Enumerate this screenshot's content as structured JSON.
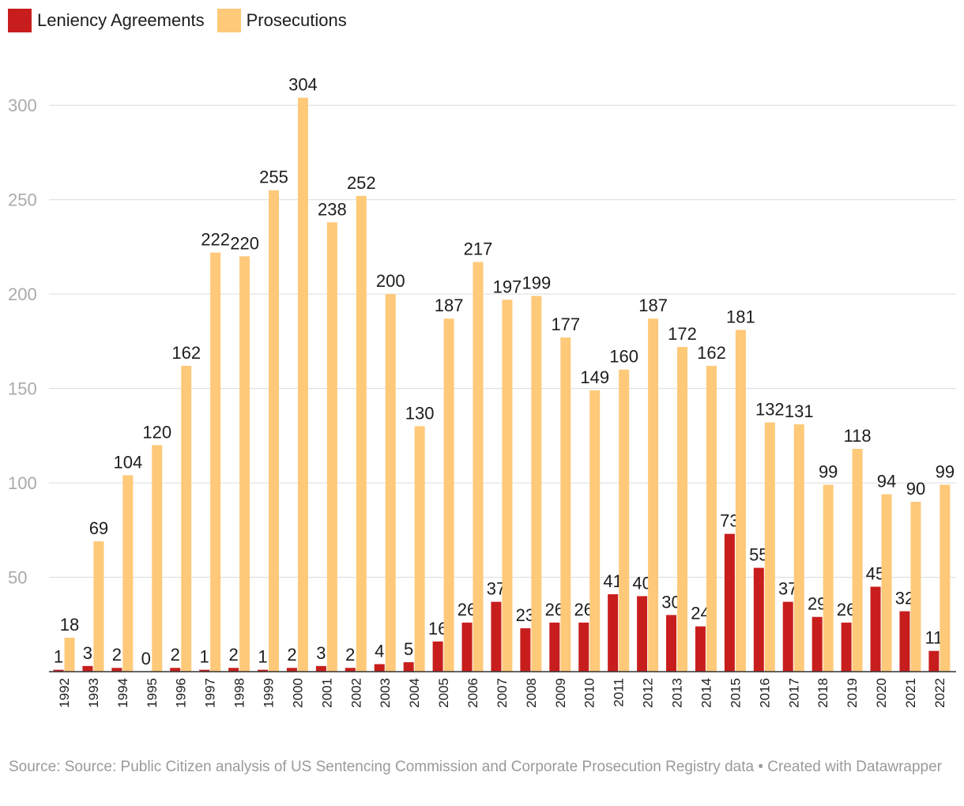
{
  "legend": {
    "items": [
      {
        "label": "Leniency Agreements",
        "color": "#c71e1d"
      },
      {
        "label": "Prosecutions",
        "color": "#fec979"
      }
    ]
  },
  "footer": {
    "text": "Source: Source: Public Citizen analysis of US Sentencing Commission and Corporate Prosecution Registry data • Created with Datawrapper"
  },
  "chart_data": {
    "type": "bar",
    "title": "",
    "xlabel": "",
    "ylabel": "",
    "ylim": [
      0,
      316
    ],
    "yticks": [
      50,
      100,
      150,
      200,
      250,
      300
    ],
    "grid": true,
    "legend_position": "top-left",
    "categories": [
      "1992",
      "1993",
      "1994",
      "1995",
      "1996",
      "1997",
      "1998",
      "1999",
      "2000",
      "2001",
      "2002",
      "2003",
      "2004",
      "2005",
      "2006",
      "2007",
      "2008",
      "2009",
      "2010",
      "2011",
      "2012",
      "2013",
      "2014",
      "2015",
      "2016",
      "2017",
      "2018",
      "2019",
      "2020",
      "2021",
      "2022"
    ],
    "series": [
      {
        "name": "Leniency Agreements",
        "color": "#c71e1d",
        "values": [
          1,
          3,
          2,
          0,
          2,
          1,
          2,
          1,
          2,
          3,
          2,
          4,
          5,
          16,
          26,
          37,
          23,
          26,
          26,
          41,
          40,
          30,
          24,
          73,
          55,
          37,
          29,
          26,
          45,
          32,
          11
        ]
      },
      {
        "name": "Prosecutions",
        "color": "#fec979",
        "values": [
          18,
          69,
          104,
          120,
          162,
          222,
          220,
          255,
          304,
          238,
          252,
          200,
          130,
          187,
          217,
          197,
          199,
          177,
          149,
          160,
          187,
          172,
          162,
          181,
          132,
          131,
          99,
          118,
          94,
          90,
          99
        ]
      }
    ]
  }
}
